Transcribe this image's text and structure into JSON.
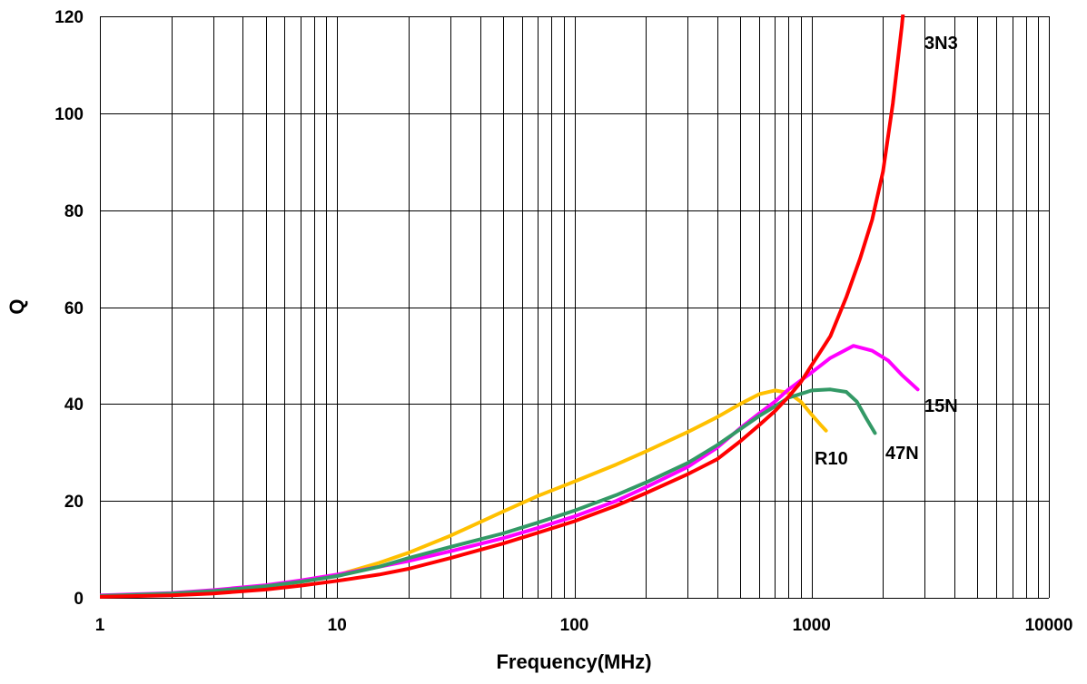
{
  "chart_data": {
    "type": "line",
    "title": "",
    "xlabel": "Frequency(MHz)",
    "ylabel": "Q",
    "x_scale": "log",
    "xlim": [
      1,
      10000
    ],
    "ylim": [
      0,
      120
    ],
    "x_ticks": [
      "1",
      "10",
      "100",
      "1000",
      "10000"
    ],
    "y_ticks": [
      "0",
      "20",
      "40",
      "60",
      "80",
      "100",
      "120"
    ],
    "grid": true,
    "legend": "none",
    "series": [
      {
        "name": "3N3",
        "color": "#ff0000",
        "points": [
          [
            1,
            0.2
          ],
          [
            2,
            0.5
          ],
          [
            3,
            0.9
          ],
          [
            5,
            1.7
          ],
          [
            7,
            2.5
          ],
          [
            10,
            3.5
          ],
          [
            15,
            4.8
          ],
          [
            20,
            6
          ],
          [
            30,
            8.2
          ],
          [
            50,
            11.2
          ],
          [
            70,
            13.4
          ],
          [
            100,
            15.8
          ],
          [
            150,
            19
          ],
          [
            200,
            21.6
          ],
          [
            300,
            25.5
          ],
          [
            400,
            28.6
          ],
          [
            500,
            32.3
          ],
          [
            600,
            35.6
          ],
          [
            700,
            38.5
          ],
          [
            800,
            41.5
          ],
          [
            900,
            44.5
          ],
          [
            1000,
            48
          ],
          [
            1200,
            54
          ],
          [
            1400,
            62
          ],
          [
            1600,
            70
          ],
          [
            1800,
            78
          ],
          [
            2000,
            88
          ],
          [
            2200,
            102
          ],
          [
            2400,
            118
          ],
          [
            2500,
            127
          ]
        ]
      },
      {
        "name": "15N",
        "color": "#ff00ff",
        "points": [
          [
            1,
            0.5
          ],
          [
            2,
            1
          ],
          [
            3,
            1.6
          ],
          [
            5,
            2.6
          ],
          [
            7,
            3.6
          ],
          [
            10,
            4.8
          ],
          [
            15,
            6.4
          ],
          [
            20,
            7.6
          ],
          [
            30,
            9.6
          ],
          [
            50,
            12.3
          ],
          [
            70,
            14.4
          ],
          [
            100,
            16.8
          ],
          [
            150,
            20
          ],
          [
            200,
            22.8
          ],
          [
            300,
            27
          ],
          [
            400,
            31
          ],
          [
            500,
            35
          ],
          [
            600,
            38
          ],
          [
            700,
            40.5
          ],
          [
            800,
            43
          ],
          [
            1000,
            46.5
          ],
          [
            1200,
            49.5
          ],
          [
            1500,
            52
          ],
          [
            1800,
            51
          ],
          [
            2100,
            49
          ],
          [
            2400,
            46
          ],
          [
            2800,
            43
          ]
        ]
      },
      {
        "name": "47N",
        "color": "#339966",
        "points": [
          [
            1,
            0.4
          ],
          [
            2,
            0.9
          ],
          [
            3,
            1.4
          ],
          [
            5,
            2.4
          ],
          [
            7,
            3.3
          ],
          [
            10,
            4.5
          ],
          [
            15,
            6.4
          ],
          [
            20,
            8.2
          ],
          [
            30,
            10.5
          ],
          [
            50,
            13.3
          ],
          [
            70,
            15.5
          ],
          [
            100,
            18
          ],
          [
            150,
            21.2
          ],
          [
            200,
            23.8
          ],
          [
            300,
            27.8
          ],
          [
            400,
            31.5
          ],
          [
            500,
            34.8
          ],
          [
            600,
            37.5
          ],
          [
            700,
            39.5
          ],
          [
            800,
            41.3
          ],
          [
            1000,
            42.8
          ],
          [
            1200,
            43
          ],
          [
            1400,
            42.5
          ],
          [
            1550,
            40.5
          ],
          [
            1700,
            37
          ],
          [
            1850,
            34
          ]
        ]
      },
      {
        "name": "R10",
        "color": "#ffc000",
        "points": [
          [
            1,
            0.3
          ],
          [
            2,
            0.8
          ],
          [
            3,
            1.3
          ],
          [
            5,
            2.3
          ],
          [
            7,
            3.3
          ],
          [
            10,
            4.7
          ],
          [
            15,
            7.2
          ],
          [
            20,
            9.3
          ],
          [
            30,
            12.8
          ],
          [
            50,
            17.8
          ],
          [
            70,
            21
          ],
          [
            100,
            24
          ],
          [
            150,
            27.5
          ],
          [
            200,
            30.2
          ],
          [
            300,
            34.2
          ],
          [
            400,
            37.3
          ],
          [
            500,
            40
          ],
          [
            600,
            42
          ],
          [
            700,
            42.8
          ],
          [
            800,
            42.3
          ],
          [
            900,
            40.5
          ],
          [
            1000,
            37.8
          ],
          [
            1100,
            35.5
          ],
          [
            1150,
            34.5
          ]
        ]
      }
    ]
  }
}
